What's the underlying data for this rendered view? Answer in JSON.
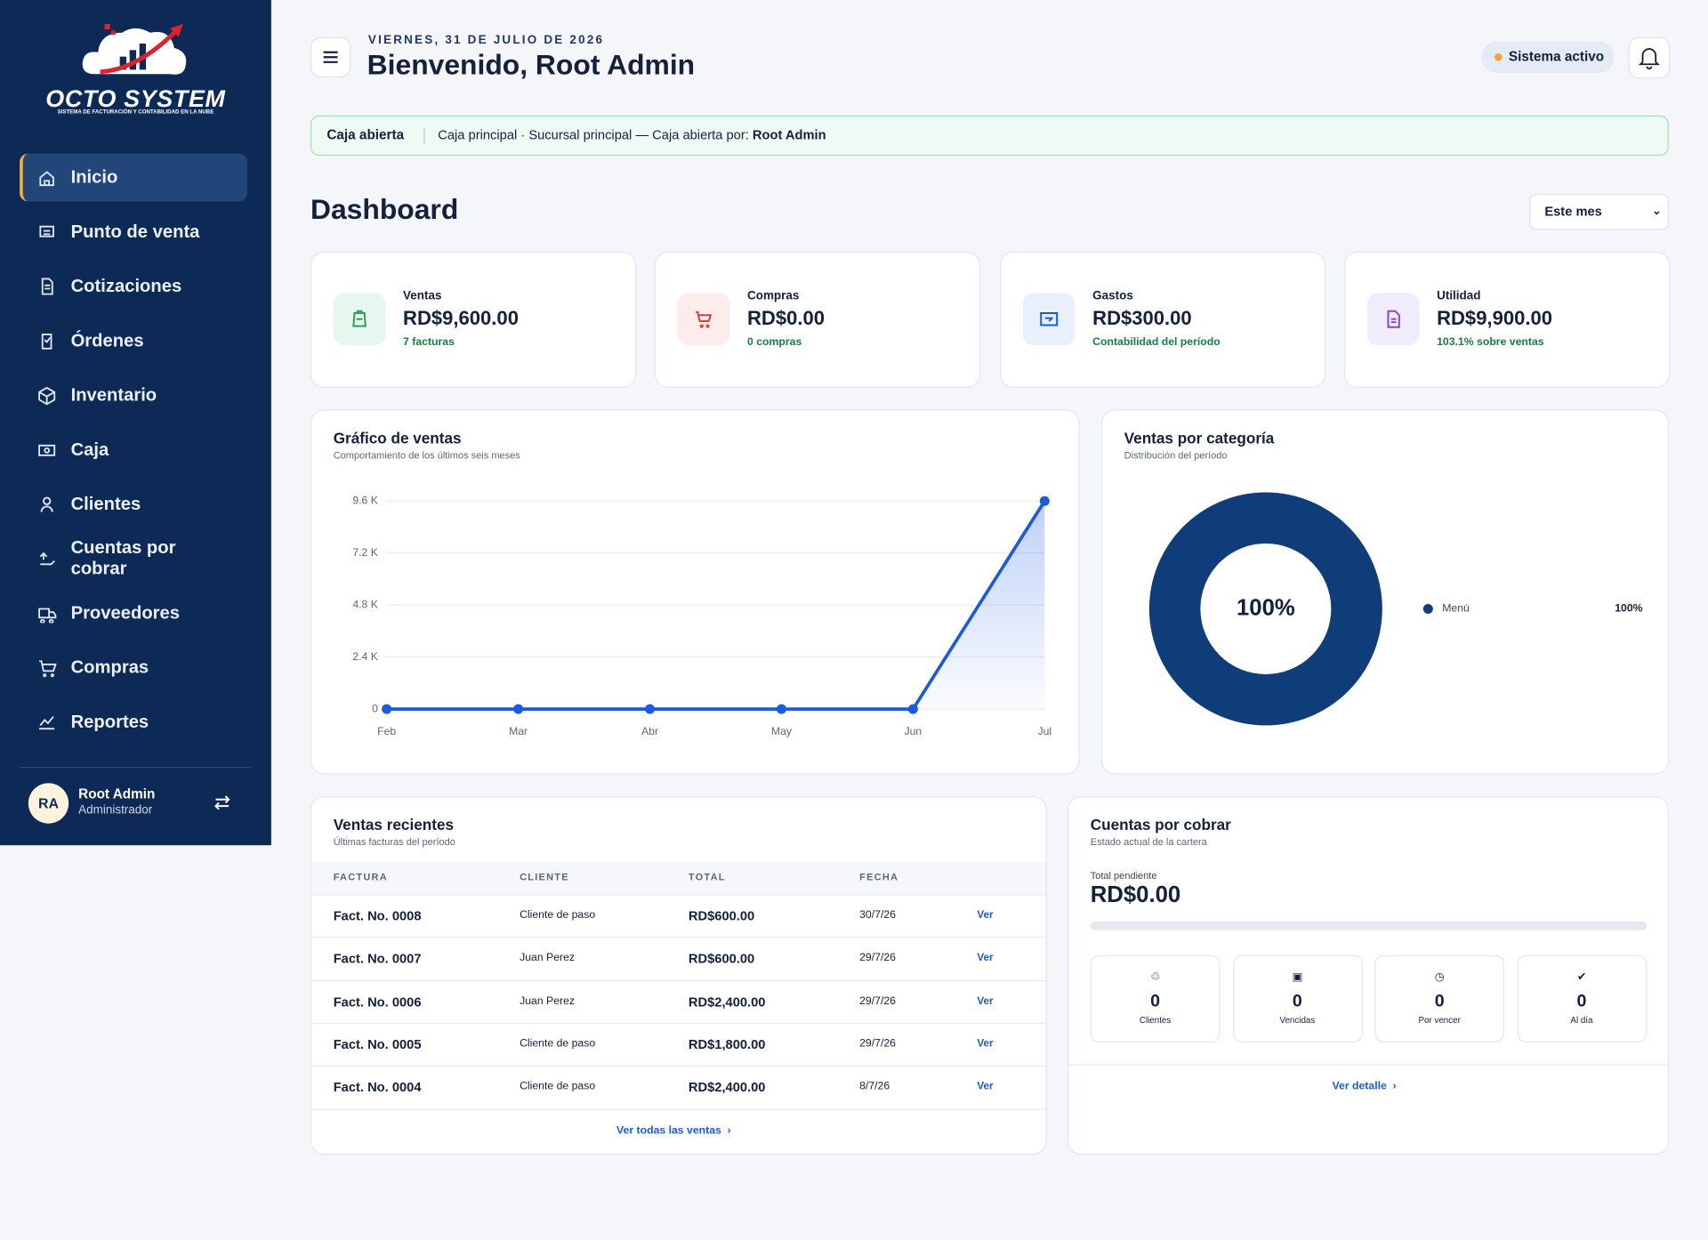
{
  "sidebar": {
    "brand": "OCTO SYSTEM",
    "tagline": "SISTEMA DE FACTURACIÓN Y CONTABILIDAD EN LA NUBE",
    "nav": [
      "Inicio",
      "Punto de venta",
      "Cotizaciones",
      "Órdenes",
      "Inventario",
      "Caja",
      "Clientes",
      "Cuentas por cobrar",
      "Proveedores",
      "Compras",
      "Reportes"
    ],
    "user": {
      "initials": "RA",
      "name": "Root Admin",
      "role": "Administrador"
    }
  },
  "header": {
    "date": "VIERNES, 31 DE JULIO DE 2026",
    "greeting": "Bienvenido, Root Admin",
    "status": "Sistema activo"
  },
  "banner": {
    "label": "Caja abierta",
    "text": "Caja principal · Sucursal principal — Caja abierta por:",
    "user": "Root Admin"
  },
  "dashboard": {
    "title": "Dashboard",
    "period": "Este mes"
  },
  "kpis": [
    {
      "label": "Ventas",
      "value": "RD$9,600.00",
      "note": "7 facturas"
    },
    {
      "label": "Compras",
      "value": "RD$0.00",
      "note": "0 compras"
    },
    {
      "label": "Gastos",
      "value": "RD$300.00",
      "note": "Contabilidad del período"
    },
    {
      "label": "Utilidad",
      "value": "RD$9,900.00",
      "note": "103.1% sobre ventas"
    }
  ],
  "chart_data": [
    {
      "type": "line",
      "title": "Gráfico de ventas",
      "subtitle": "Comportamiento de los últimos seis meses",
      "categories": [
        "Feb",
        "Mar",
        "Abr",
        "May",
        "Jun",
        "Jul"
      ],
      "values": [
        0,
        0,
        0,
        0,
        0,
        9600
      ],
      "color": "#1a5ae0",
      "ylim": [
        0,
        9600
      ],
      "yticks": [
        0,
        {
          "value": 2400,
          "label": "2.4 K"
        },
        {
          "value": 4800,
          "label": "4.8 K"
        },
        {
          "value": 7200,
          "label": "7.2 K"
        },
        {
          "value": 9600,
          "label": "9.6 K"
        }
      ],
      "grid": true
    },
    {
      "type": "pie",
      "title": "Ventas por categoría",
      "subtitle": "Distribución del período",
      "categories": [
        "Menú"
      ],
      "values": [
        100
      ],
      "value_labels": [
        "100%"
      ],
      "colors": [
        "#0f3d7a"
      ],
      "donut": true
    }
  ],
  "recent_sales": {
    "title": "Ventas recientes",
    "subtitle": "Últimas facturas del período",
    "columns": [
      "FACTURA",
      "CLIENTE",
      "TOTAL",
      "FECHA"
    ],
    "rows": [
      [
        "Fact. No. 0008",
        "Cliente de paso",
        "RD$600.00",
        "30/7/26",
        "Ver"
      ],
      [
        "Fact. No. 0007",
        "Juan Perez",
        "RD$600.00",
        "29/7/26",
        "Ver"
      ],
      [
        "Fact. No. 0006",
        "Juan Perez",
        "RD$2,400.00",
        "29/7/26",
        "Ver"
      ],
      [
        "Fact. No. 0005",
        "Cliente de paso",
        "RD$1,800.00",
        "29/7/26",
        "Ver"
      ],
      [
        "Fact. No. 0004",
        "Cliente de paso",
        "RD$2,400.00",
        "8/7/26",
        "Ver"
      ]
    ],
    "link": "Ver todas las ventas"
  },
  "receivables": {
    "title": "Cuentas por cobrar",
    "subtitle": "Estado actual de la cartera",
    "total_label": "Total pendiente",
    "total": "RD$0.00",
    "stats": [
      {
        "count": 0,
        "label": "Clientes"
      },
      {
        "count": 0,
        "label": "Vencidas"
      },
      {
        "count": 0,
        "label": "Por vencer"
      },
      {
        "count": 0,
        "label": "Al día"
      }
    ],
    "link": "Ver detalle"
  }
}
